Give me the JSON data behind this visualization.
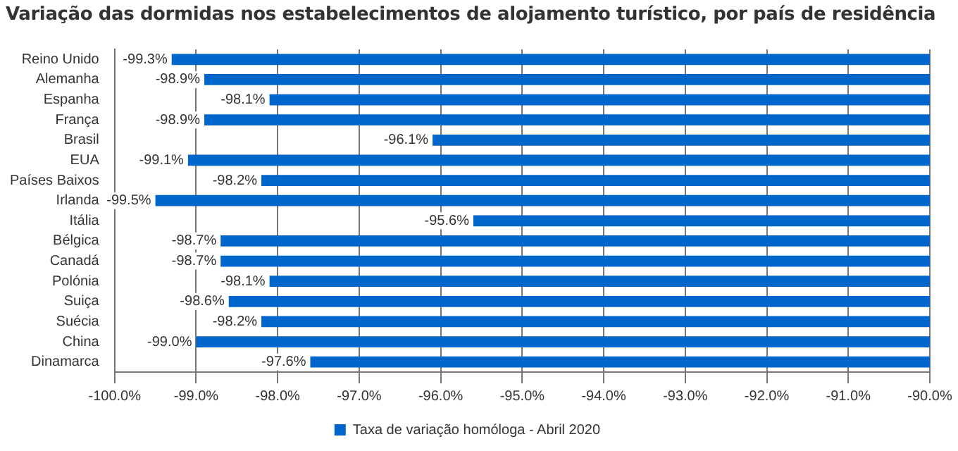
{
  "chart_data": {
    "type": "bar",
    "orientation": "horizontal",
    "title": "Variação das dormidas nos estabelecimentos de alojamento turístico, por país de residência",
    "categories": [
      "Reino Unido",
      "Alemanha",
      "Espanha",
      "França",
      "Brasil",
      "EUA",
      "Países Baixos",
      "Irlanda",
      "Itália",
      "Bélgica",
      "Canadá",
      "Polónia",
      "Suiça",
      "Suécia",
      "China",
      "Dinamarca"
    ],
    "series": [
      {
        "name": "Taxa de variação homóloga - Abril 2020",
        "color": "#0066cc",
        "values": [
          -99.3,
          -98.9,
          -98.1,
          -98.9,
          -96.1,
          -99.1,
          -98.2,
          -99.5,
          -95.6,
          -98.7,
          -98.7,
          -98.1,
          -98.6,
          -98.2,
          -99.0,
          -97.6
        ],
        "value_labels": [
          "-99.3%",
          "-98.9%",
          "-98.1%",
          "-98.9%",
          "-96.1%",
          "-99.1%",
          "-98.2%",
          "-99.5%",
          "-95.6%",
          "-98.7%",
          "-98.7%",
          "-98.1%",
          "-98.6%",
          "-98.2%",
          "-99.0%",
          "-97.6%"
        ]
      }
    ],
    "xlim": [
      -100,
      -90
    ],
    "xticks": [
      {
        "value": -100,
        "label": "-100.0%"
      },
      {
        "value": -99,
        "label": "-99.0%"
      },
      {
        "value": -98,
        "label": "-98.0%"
      },
      {
        "value": -97,
        "label": "-97.0%"
      },
      {
        "value": -96,
        "label": "-96.0%"
      },
      {
        "value": -95,
        "label": "-95.0%"
      },
      {
        "value": -94,
        "label": "-94.0%"
      },
      {
        "value": -93,
        "label": "-93.0%"
      },
      {
        "value": -92,
        "label": "-92.0%"
      },
      {
        "value": -91,
        "label": "-91.0%"
      },
      {
        "value": -90,
        "label": "-90.0%"
      }
    ],
    "grid": "x",
    "legend": "bottom"
  }
}
